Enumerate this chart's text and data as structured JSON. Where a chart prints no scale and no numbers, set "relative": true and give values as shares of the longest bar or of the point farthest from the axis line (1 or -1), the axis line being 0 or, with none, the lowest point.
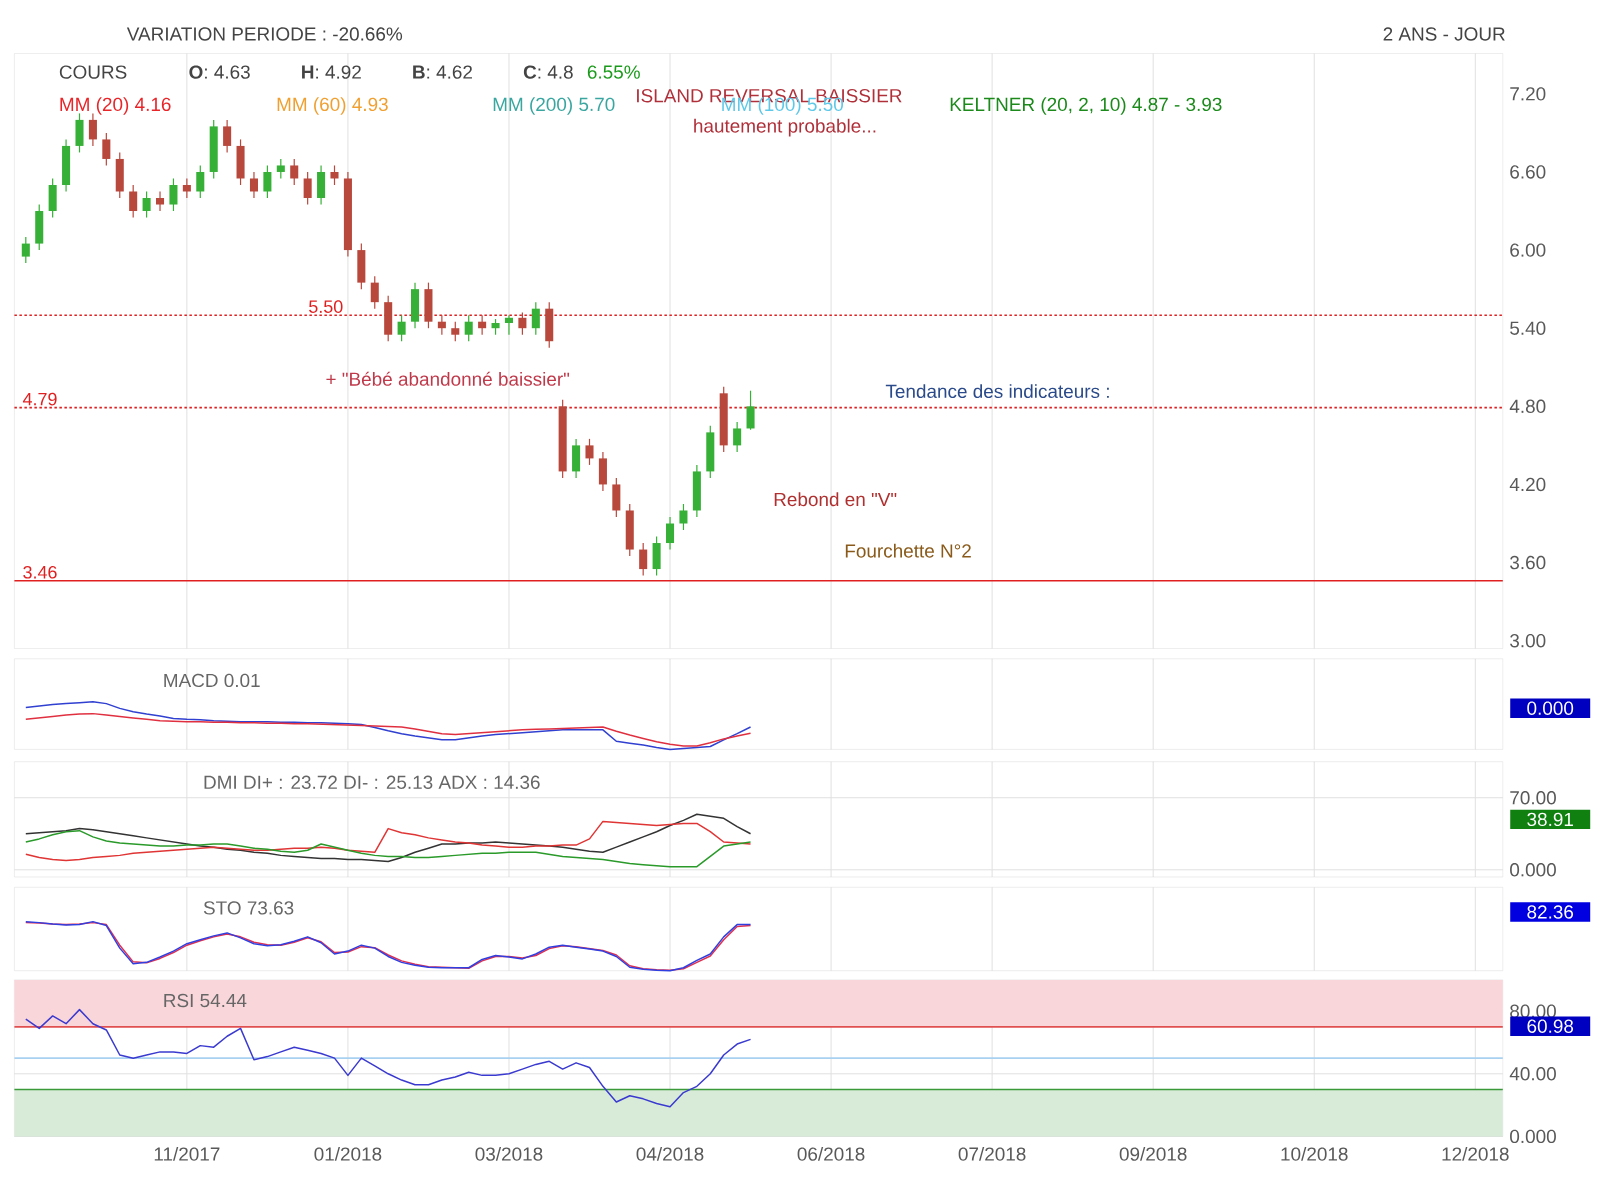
{
  "chart_data": [
    {
      "type": "candlestick",
      "ylim": [
        2.94,
        7.51
      ],
      "categories": [
        null,
        null,
        null,
        null,
        null,
        null,
        null,
        null,
        null,
        null,
        null,
        null,
        null,
        null,
        null,
        null,
        null,
        null,
        null,
        null,
        null,
        null,
        null,
        null,
        null,
        null,
        null,
        null,
        null,
        null,
        null,
        null,
        null,
        null,
        null,
        null,
        null,
        null,
        null,
        null,
        null,
        null,
        null,
        null,
        null,
        null,
        null,
        null,
        null,
        null,
        null,
        null,
        null,
        null,
        null,
        null,
        null,
        null,
        null,
        null,
        null,
        null,
        null,
        null,
        null,
        null,
        null,
        null,
        null,
        null,
        null,
        null,
        null,
        null,
        null,
        null,
        null,
        null,
        null,
        null,
        null,
        null,
        null,
        null,
        null,
        null,
        null,
        null,
        null,
        null,
        null,
        null,
        null,
        null,
        null,
        null,
        null,
        null,
        null,
        null,
        null,
        null,
        null,
        null,
        null,
        null,
        null,
        null,
        null,
        null,
        null
      ],
      "yticks": [
        {
          "value": 3,
          "label": "3.00"
        },
        {
          "value": 3.6,
          "label": "3.60"
        },
        {
          "value": 4.2,
          "label": "4.20"
        },
        {
          "value": 4.8,
          "label": "4.80"
        },
        {
          "value": 5.4,
          "label": "5.40"
        },
        {
          "value": 6,
          "label": "6.00"
        },
        {
          "value": 6.6,
          "label": "6.60"
        },
        {
          "value": 7.2,
          "label": "7.20"
        }
      ],
      "tick_labels": "y",
      "grid": "x",
      "ohlc": [
        [
          5.95,
          6.1,
          5.9,
          6.05
        ],
        [
          6.05,
          6.35,
          6.0,
          6.3
        ],
        [
          6.3,
          6.55,
          6.25,
          6.5
        ],
        [
          6.5,
          6.85,
          6.45,
          6.8
        ],
        [
          6.8,
          7.05,
          6.75,
          7.0
        ],
        [
          7.0,
          7.05,
          6.8,
          6.85
        ],
        [
          6.85,
          6.9,
          6.65,
          6.7
        ],
        [
          6.7,
          6.75,
          6.4,
          6.45
        ],
        [
          6.45,
          6.5,
          6.25,
          6.3
        ],
        [
          6.3,
          6.45,
          6.25,
          6.4
        ],
        [
          6.4,
          6.45,
          6.3,
          6.35
        ],
        [
          6.35,
          6.55,
          6.3,
          6.5
        ],
        [
          6.5,
          6.55,
          6.4,
          6.45
        ],
        [
          6.45,
          6.65,
          6.4,
          6.6
        ],
        [
          6.6,
          7.0,
          6.55,
          6.95
        ],
        [
          6.95,
          7.0,
          6.75,
          6.8
        ],
        [
          6.8,
          6.85,
          6.5,
          6.55
        ],
        [
          6.55,
          6.6,
          6.4,
          6.45
        ],
        [
          6.45,
          6.65,
          6.4,
          6.6
        ],
        [
          6.6,
          6.7,
          6.55,
          6.65
        ],
        [
          6.65,
          6.7,
          6.5,
          6.55
        ],
        [
          6.55,
          6.6,
          6.35,
          6.4
        ],
        [
          6.4,
          6.65,
          6.35,
          6.6
        ],
        [
          6.6,
          6.65,
          6.5,
          6.55
        ],
        [
          6.55,
          6.6,
          5.95,
          6.0
        ],
        [
          6.0,
          6.05,
          5.7,
          5.75
        ],
        [
          5.75,
          5.8,
          5.55,
          5.6
        ],
        [
          5.6,
          5.65,
          5.3,
          5.35
        ],
        [
          5.35,
          5.5,
          5.3,
          5.45
        ],
        [
          5.45,
          5.75,
          5.4,
          5.7
        ],
        [
          5.7,
          5.75,
          5.4,
          5.45
        ],
        [
          5.45,
          5.5,
          5.35,
          5.4
        ],
        [
          5.4,
          5.45,
          5.3,
          5.35
        ],
        [
          5.35,
          5.5,
          5.3,
          5.45
        ],
        [
          5.45,
          5.5,
          5.35,
          5.4
        ],
        [
          5.4,
          5.47,
          5.35,
          5.44
        ],
        [
          5.44,
          5.5,
          5.35,
          5.48
        ],
        [
          5.48,
          5.52,
          5.35,
          5.4
        ],
        [
          5.4,
          5.6,
          5.35,
          5.55
        ],
        [
          5.55,
          5.6,
          5.25,
          5.3
        ],
        [
          4.8,
          4.85,
          4.25,
          4.3
        ],
        [
          4.3,
          4.55,
          4.25,
          4.5
        ],
        [
          4.5,
          4.55,
          4.35,
          4.4
        ],
        [
          4.4,
          4.45,
          4.15,
          4.2
        ],
        [
          4.2,
          4.25,
          3.95,
          4.0
        ],
        [
          4.0,
          4.05,
          3.65,
          3.7
        ],
        [
          3.7,
          3.75,
          3.5,
          3.55
        ],
        [
          3.55,
          3.8,
          3.5,
          3.75
        ],
        [
          3.75,
          3.95,
          3.7,
          3.9
        ],
        [
          3.9,
          4.05,
          3.85,
          4.0
        ],
        [
          4.0,
          4.35,
          3.95,
          4.3
        ],
        [
          4.3,
          4.65,
          4.25,
          4.6
        ],
        [
          4.9,
          4.95,
          4.45,
          4.5
        ],
        [
          4.5,
          4.68,
          4.45,
          4.63
        ],
        [
          4.63,
          4.92,
          4.62,
          4.8
        ],
        null,
        null,
        null,
        null,
        null,
        null,
        null,
        null,
        null,
        null,
        null,
        null,
        null,
        null,
        null,
        null,
        null,
        null,
        null,
        null,
        null,
        null,
        null,
        null,
        null,
        null,
        null,
        null,
        null,
        null,
        null,
        null,
        null,
        null,
        null,
        null,
        null,
        null,
        null,
        null,
        null,
        null,
        null,
        null,
        null,
        null,
        null,
        null,
        null,
        null,
        null,
        null,
        null,
        null,
        null,
        null
      ],
      "ref_lines": [
        {
          "axis": "y",
          "value": 5.5,
          "label": "5.50",
          "color": "#e02020",
          "line_style": "dotted"
        },
        {
          "axis": "y",
          "value": 4.79,
          "label": "4.79",
          "color": "#e02020",
          "line_style": "dotted"
        },
        {
          "axis": "y",
          "value": 3.46,
          "label": "3.46",
          "color": "#e02020",
          "line_style": "solid"
        }
      ],
      "annotations": [
        "VARIATION PERIODE : -20.66%",
        "2 ANS - JOUR",
        "COURS",
        "**O**: 4.63",
        "**H**: 4.92",
        "**B**: 4.62",
        "**C**: 4.8",
        "6.55%",
        "KELTNER (20, 2, 10) 4.87 - 3.93",
        "ISLAND REVERSAL BAISSIER",
        "hautement probable...",
        "+ \"Bébé abandonné baissier\"",
        "Tendance des indicateurs :",
        "Rebond en \"V\"",
        "Fourchette N°2",
        "MM (20) 4.16",
        "MM (60) 4.93",
        "MM (200) 5.70",
        "MM (100) 5.50"
      ]
    },
    {
      "type": "line",
      "title": "MACD 0.01",
      "relative": true,
      "categories": [
        null,
        null,
        null,
        null,
        null,
        null,
        null,
        null,
        null,
        null,
        null,
        null,
        null,
        null,
        null,
        null,
        null,
        null,
        null,
        null,
        null,
        null,
        null,
        null,
        null,
        null,
        null,
        null,
        null,
        null,
        null,
        null,
        null,
        null,
        null,
        null,
        null,
        null,
        null,
        null,
        null,
        null,
        null,
        null,
        null,
        null,
        null,
        null,
        null,
        null,
        null,
        null,
        null,
        null,
        null,
        null,
        null,
        null,
        null,
        null,
        null,
        null,
        null,
        null,
        null,
        null,
        null,
        null,
        null,
        null,
        null,
        null,
        null,
        null,
        null,
        null,
        null,
        null,
        null,
        null,
        null,
        null,
        null,
        null,
        null,
        null,
        null,
        null,
        null,
        null,
        null,
        null,
        null,
        null,
        null,
        null,
        null,
        null,
        null,
        null,
        null,
        null,
        null,
        null,
        null,
        null,
        null,
        null,
        null,
        null,
        null
      ],
      "tick_labels": false,
      "grid": "x",
      "series": [
        {
          "color": "#3040d0",
          "values": [
            0.88,
            0.91,
            0.94,
            0.96,
            0.98,
            1.0,
            0.96,
            0.86,
            0.79,
            0.74,
            0.7,
            0.65,
            0.63,
            0.62,
            0.6,
            0.59,
            0.58,
            0.58,
            0.58,
            0.57,
            0.57,
            0.56,
            0.56,
            0.55,
            0.54,
            0.52,
            0.46,
            0.39,
            0.33,
            0.28,
            0.24,
            0.2,
            0.2,
            0.24,
            0.28,
            0.31,
            0.33,
            0.35,
            0.37,
            0.39,
            0.41,
            0.41,
            0.41,
            0.41,
            0.17,
            0.13,
            0.09,
            0.04,
            0.0,
            0.02,
            0.04,
            0.06,
            0.2,
            0.33,
            0.47,
            null,
            null,
            null,
            null,
            null,
            null,
            null,
            null,
            null,
            null,
            null,
            null,
            null,
            null,
            null,
            null,
            null,
            null,
            null,
            null,
            null,
            null,
            null,
            null,
            null,
            null,
            null,
            null,
            null,
            null,
            null,
            null,
            null,
            null,
            null,
            null,
            null,
            null,
            null,
            null,
            null,
            null,
            null,
            null,
            null,
            null,
            null,
            null,
            null,
            null,
            null,
            null,
            null,
            null,
            null,
            null
          ]
        },
        {
          "color": "#e03040",
          "values": [
            0.63,
            0.66,
            0.69,
            0.72,
            0.74,
            0.75,
            0.72,
            0.69,
            0.66,
            0.63,
            0.6,
            0.59,
            0.58,
            0.58,
            0.57,
            0.57,
            0.56,
            0.56,
            0.55,
            0.55,
            0.54,
            0.54,
            0.53,
            0.52,
            0.51,
            0.5,
            0.49,
            0.48,
            0.47,
            0.43,
            0.38,
            0.33,
            0.31,
            0.33,
            0.35,
            0.37,
            0.39,
            0.41,
            0.42,
            0.43,
            0.44,
            0.45,
            0.46,
            0.47,
            0.38,
            0.3,
            0.23,
            0.16,
            0.11,
            0.07,
            0.07,
            0.14,
            0.22,
            0.28,
            0.34,
            null,
            null,
            null,
            null,
            null,
            null,
            null,
            null,
            null,
            null,
            null,
            null,
            null,
            null,
            null,
            null,
            null,
            null,
            null,
            null,
            null,
            null,
            null,
            null,
            null,
            null,
            null,
            null,
            null,
            null,
            null,
            null,
            null,
            null,
            null,
            null,
            null,
            null,
            null,
            null,
            null,
            null,
            null,
            null,
            null,
            null,
            null,
            null,
            null,
            null,
            null,
            null,
            null,
            null,
            null,
            null
          ]
        }
      ],
      "annotations": [
        "0.000"
      ]
    },
    {
      "type": "line",
      "title": "DMI DI+ : 23.72 DI- : 25.13 ADX : 14.36",
      "ylim": [
        -7,
        105
      ],
      "categories": [
        null,
        null,
        null,
        null,
        null,
        null,
        null,
        null,
        null,
        null,
        null,
        null,
        null,
        null,
        null,
        null,
        null,
        null,
        null,
        null,
        null,
        null,
        null,
        null,
        null,
        null,
        null,
        null,
        null,
        null,
        null,
        null,
        null,
        null,
        null,
        null,
        null,
        null,
        null,
        null,
        null,
        null,
        null,
        null,
        null,
        null,
        null,
        null,
        null,
        null,
        null,
        null,
        null,
        null,
        null,
        null,
        null,
        null,
        null,
        null,
        null,
        null,
        null,
        null,
        null,
        null,
        null,
        null,
        null,
        null,
        null,
        null,
        null,
        null,
        null,
        null,
        null,
        null,
        null,
        null,
        null,
        null,
        null,
        null,
        null,
        null,
        null,
        null,
        null,
        null,
        null,
        null,
        null,
        null,
        null,
        null,
        null,
        null,
        null,
        null,
        null,
        null,
        null,
        null,
        null,
        null,
        null,
        null,
        null,
        null,
        null
      ],
      "yticks": [
        {
          "value": 0,
          "label": "0.000"
        },
        {
          "value": 70,
          "label": "70.00"
        }
      ],
      "tick_labels": "y",
      "grid": true,
      "series": [
        {
          "color": "#333333",
          "values": [
            35,
            36,
            37,
            38,
            40,
            39,
            37,
            35,
            33,
            31,
            29,
            27,
            25,
            23,
            22,
            20,
            19,
            17,
            16,
            14,
            13,
            12,
            11,
            11,
            10,
            10,
            9,
            8,
            12,
            17,
            21,
            25,
            25,
            26,
            26,
            27,
            26,
            25,
            24,
            23,
            22,
            20,
            18,
            17,
            22,
            27,
            32,
            37,
            43,
            48,
            54,
            52,
            50,
            42,
            35,
            null,
            null,
            null,
            null,
            null,
            null,
            null,
            null,
            null,
            null,
            null,
            null,
            null,
            null,
            null,
            null,
            null,
            null,
            null,
            null,
            null,
            null,
            null,
            null,
            null,
            null,
            null,
            null,
            null,
            null,
            null,
            null,
            null,
            null,
            null,
            null,
            null,
            null,
            null,
            null,
            null,
            null,
            null,
            null,
            null,
            null,
            null,
            null,
            null,
            null,
            null,
            null,
            null,
            null,
            null,
            null
          ]
        },
        {
          "color": "#e03535",
          "values": [
            15,
            12,
            10,
            9,
            10,
            12,
            13,
            14,
            16,
            17,
            18,
            19,
            20,
            21,
            22,
            21,
            20,
            19,
            19,
            20,
            21,
            21,
            22,
            21,
            19,
            18,
            17,
            40,
            36,
            34,
            31,
            29,
            27,
            26,
            24,
            23,
            22,
            22,
            23,
            23,
            24,
            24,
            30,
            47,
            46,
            45,
            44,
            43,
            44,
            45,
            45,
            37,
            27,
            26,
            25,
            null,
            null,
            null,
            null,
            null,
            null,
            null,
            null,
            null,
            null,
            null,
            null,
            null,
            null,
            null,
            null,
            null,
            null,
            null,
            null,
            null,
            null,
            null,
            null,
            null,
            null,
            null,
            null,
            null,
            null,
            null,
            null,
            null,
            null,
            null,
            null,
            null,
            null,
            null,
            null,
            null,
            null,
            null,
            null,
            null,
            null,
            null,
            null,
            null,
            null,
            null,
            null,
            null,
            null,
            null,
            null
          ]
        },
        {
          "color": "#2a9a2a",
          "values": [
            27,
            30,
            34,
            37,
            38,
            32,
            28,
            26,
            25,
            24,
            23,
            23,
            24,
            24,
            25,
            25,
            23,
            21,
            20,
            18,
            17,
            19,
            25,
            22,
            19,
            16,
            14,
            13,
            13,
            12,
            12,
            13,
            14,
            15,
            16,
            16,
            17,
            17,
            17,
            15,
            13,
            12,
            11,
            10,
            8,
            6,
            5,
            4,
            3,
            3,
            3,
            13,
            23,
            25,
            27,
            null,
            null,
            null,
            null,
            null,
            null,
            null,
            null,
            null,
            null,
            null,
            null,
            null,
            null,
            null,
            null,
            null,
            null,
            null,
            null,
            null,
            null,
            null,
            null,
            null,
            null,
            null,
            null,
            null,
            null,
            null,
            null,
            null,
            null,
            null,
            null,
            null,
            null,
            null,
            null,
            null,
            null,
            null,
            null,
            null,
            null,
            null,
            null,
            null,
            null,
            null,
            null,
            null,
            null,
            null,
            null
          ]
        }
      ],
      "annotations": [
        "38.91"
      ]
    },
    {
      "type": "line",
      "title": "STO 73.63",
      "relative": true,
      "categories": [
        null,
        null,
        null,
        null,
        null,
        null,
        null,
        null,
        null,
        null,
        null,
        null,
        null,
        null,
        null,
        null,
        null,
        null,
        null,
        null,
        null,
        null,
        null,
        null,
        null,
        null,
        null,
        null,
        null,
        null,
        null,
        null,
        null,
        null,
        null,
        null,
        null,
        null,
        null,
        null,
        null,
        null,
        null,
        null,
        null,
        null,
        null,
        null,
        null,
        null,
        null,
        null,
        null,
        null,
        null,
        null,
        null,
        null,
        null,
        null,
        null,
        null,
        null,
        null,
        null,
        null,
        null,
        null,
        null,
        null,
        null,
        null,
        null,
        null,
        null,
        null,
        null,
        null,
        null,
        null,
        null,
        null,
        null,
        null,
        null,
        null,
        null,
        null,
        null,
        null,
        null,
        null,
        null,
        null,
        null,
        null,
        null,
        null,
        null,
        null,
        null,
        null,
        null,
        null,
        null,
        null,
        null,
        null,
        null,
        null,
        null
      ],
      "tick_labels": false,
      "grid": "x",
      "series": [
        {
          "color": "#e03050",
          "values": [
            0.98,
            0.97,
            0.95,
            0.94,
            0.95,
            0.98,
            0.94,
            0.52,
            0.18,
            0.16,
            0.25,
            0.37,
            0.52,
            0.61,
            0.69,
            0.75,
            0.69,
            0.58,
            0.53,
            0.52,
            0.58,
            0.67,
            0.59,
            0.37,
            0.38,
            0.49,
            0.47,
            0.32,
            0.2,
            0.13,
            0.08,
            0.07,
            0.06,
            0.05,
            0.2,
            0.29,
            0.29,
            0.26,
            0.31,
            0.45,
            0.51,
            0.49,
            0.45,
            0.41,
            0.32,
            0.1,
            0.04,
            0.02,
            0.01,
            0.04,
            0.17,
            0.3,
            0.63,
            0.9,
            0.92,
            null,
            null,
            null,
            null,
            null,
            null,
            null,
            null,
            null,
            null,
            null,
            null,
            null,
            null,
            null,
            null,
            null,
            null,
            null,
            null,
            null,
            null,
            null,
            null,
            null,
            null,
            null,
            null,
            null,
            null,
            null,
            null,
            null,
            null,
            null,
            null,
            null,
            null,
            null,
            null,
            null,
            null,
            null,
            null,
            null,
            null,
            null,
            null,
            null,
            null,
            null,
            null,
            null,
            null,
            null,
            null
          ]
        },
        {
          "color": "#3040e0",
          "values": [
            1.0,
            0.98,
            0.95,
            0.93,
            0.94,
            1.0,
            0.92,
            0.46,
            0.14,
            0.17,
            0.28,
            0.4,
            0.55,
            0.63,
            0.71,
            0.77,
            0.67,
            0.55,
            0.51,
            0.53,
            0.6,
            0.69,
            0.57,
            0.34,
            0.4,
            0.52,
            0.46,
            0.29,
            0.17,
            0.11,
            0.07,
            0.06,
            0.06,
            0.06,
            0.23,
            0.31,
            0.28,
            0.24,
            0.34,
            0.48,
            0.52,
            0.48,
            0.44,
            0.4,
            0.29,
            0.07,
            0.03,
            0.01,
            0.0,
            0.06,
            0.21,
            0.34,
            0.69,
            0.94,
            0.94,
            null,
            null,
            null,
            null,
            null,
            null,
            null,
            null,
            null,
            null,
            null,
            null,
            null,
            null,
            null,
            null,
            null,
            null,
            null,
            null,
            null,
            null,
            null,
            null,
            null,
            null,
            null,
            null,
            null,
            null,
            null,
            null,
            null,
            null,
            null,
            null,
            null,
            null,
            null,
            null,
            null,
            null,
            null,
            null,
            null,
            null,
            null,
            null,
            null,
            null,
            null,
            null,
            null,
            null,
            null,
            null
          ]
        }
      ],
      "annotations": [
        "82.36"
      ]
    },
    {
      "type": "line",
      "title": "RSI 54.44",
      "ylim": [
        0,
        100
      ],
      "categories": [
        null,
        null,
        null,
        null,
        null,
        null,
        null,
        null,
        null,
        null,
        null,
        null,
        "11/2017",
        null,
        null,
        null,
        null,
        null,
        null,
        null,
        null,
        null,
        null,
        null,
        "01/2018",
        null,
        null,
        null,
        null,
        null,
        null,
        null,
        null,
        null,
        null,
        null,
        "03/2018",
        null,
        null,
        null,
        null,
        null,
        null,
        null,
        null,
        null,
        null,
        null,
        "04/2018",
        null,
        null,
        null,
        null,
        null,
        null,
        null,
        null,
        null,
        null,
        null,
        "06/2018",
        null,
        null,
        null,
        null,
        null,
        null,
        null,
        null,
        null,
        null,
        null,
        "07/2018",
        null,
        null,
        null,
        null,
        null,
        null,
        null,
        null,
        null,
        null,
        null,
        "09/2018",
        null,
        null,
        null,
        null,
        null,
        null,
        null,
        null,
        null,
        null,
        null,
        "10/2018",
        null,
        null,
        null,
        null,
        null,
        null,
        null,
        null,
        null,
        null,
        null,
        "12/2018",
        null,
        null
      ],
      "yticks": [
        {
          "value": 0,
          "label": "0.000"
        },
        {
          "value": 40,
          "label": "40.00"
        },
        {
          "value": 80,
          "label": "80.00"
        }
      ],
      "grid": true,
      "bands": [
        {
          "axis": "y",
          "from": 70,
          "to": 100,
          "color": "#f9d6da"
        },
        {
          "axis": "y",
          "from": 0,
          "to": 30,
          "color": "#d8ead8"
        }
      ],
      "ref_lines": [
        {
          "axis": "y",
          "value": 70,
          "color": "#e05050"
        },
        {
          "axis": "y",
          "value": 50,
          "color": "#a8d0f0"
        },
        {
          "axis": "y",
          "value": 30,
          "color": "#3a9a3a"
        }
      ],
      "series": [
        {
          "color": "#3a3ad0",
          "values": [
            75,
            69,
            77,
            72,
            81,
            72,
            68,
            52,
            50,
            52,
            54,
            54,
            53,
            58,
            57,
            64,
            69,
            49,
            51,
            54,
            57,
            55,
            53,
            50,
            39,
            50,
            45,
            40,
            36,
            33,
            33,
            36,
            38,
            41,
            39,
            39,
            40,
            43,
            46,
            48,
            43,
            47,
            44,
            32,
            22,
            26,
            24,
            21,
            19,
            28,
            32,
            40,
            52,
            59,
            62,
            null,
            null,
            null,
            null,
            null,
            null,
            null,
            null,
            null,
            null,
            null,
            null,
            null,
            null,
            null,
            null,
            null,
            null,
            null,
            null,
            null,
            null,
            null,
            null,
            null,
            null,
            null,
            null,
            null,
            null,
            null,
            null,
            null,
            null,
            null,
            null,
            null,
            null,
            null,
            null,
            null,
            null,
            null,
            null,
            null,
            null,
            null,
            null,
            null,
            null,
            null,
            null,
            null,
            null,
            null,
            null
          ]
        }
      ],
      "annotations": [
        "60.98"
      ]
    }
  ]
}
